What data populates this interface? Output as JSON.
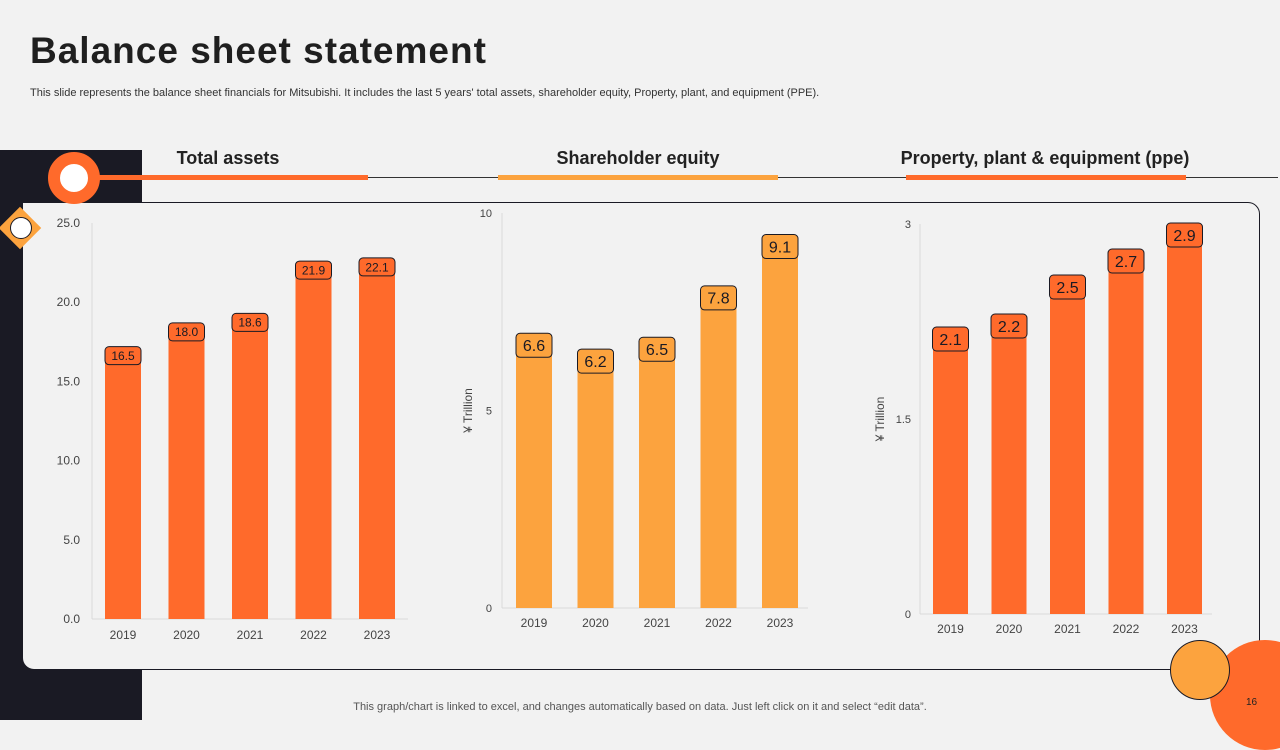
{
  "header": {
    "title": "Balance sheet statement",
    "subtitle": "This slide represents the balance sheet financials for Mitsubishi. It includes the last 5 years' total assets, shareholder equity, Property, plant, and equipment (PPE)."
  },
  "footer": {
    "note": "This graph/chart is linked to excel, and changes automatically based on data. Just left click on it and select “edit data”.",
    "page_number": "16"
  },
  "colors": {
    "orange": "#ff6a2b",
    "light_orange": "#fca33e",
    "dark": "#1a1a24"
  },
  "chart_data": [
    {
      "type": "bar",
      "title": "Total assets",
      "categories": [
        "2019",
        "2020",
        "2021",
        "2022",
        "2023"
      ],
      "values": [
        16.5,
        18.0,
        18.6,
        21.9,
        22.1
      ],
      "value_labels": [
        "16.5",
        "18.0",
        "18.6",
        "21.9",
        "22.1"
      ],
      "ylim": [
        0,
        25
      ],
      "yticks": [
        "0.0",
        "5.0",
        "10.0",
        "15.0",
        "20.0",
        "25.0"
      ],
      "ylabel": "",
      "xlabel": "",
      "color": "#ff6a2b"
    },
    {
      "type": "bar",
      "title": "Shareholder equity",
      "categories": [
        "2019",
        "2020",
        "2021",
        "2022",
        "2023"
      ],
      "values": [
        6.6,
        6.2,
        6.5,
        7.8,
        9.1
      ],
      "value_labels": [
        "6.6",
        "6.2",
        "6.5",
        "7.8",
        "9.1"
      ],
      "ylim": [
        0,
        10
      ],
      "yticks": [
        "0",
        "5",
        "10"
      ],
      "ylabel": "¥ Trillion",
      "xlabel": "",
      "color": "#fca33e"
    },
    {
      "type": "bar",
      "title": "Property, plant & equipment (ppe)",
      "categories": [
        "2019",
        "2020",
        "2021",
        "2022",
        "2023"
      ],
      "values": [
        2.1,
        2.2,
        2.5,
        2.7,
        2.9
      ],
      "value_labels": [
        "2.1",
        "2.2",
        "2.5",
        "2.7",
        "2.9"
      ],
      "ylim": [
        0,
        3
      ],
      "yticks": [
        "0",
        "1.5",
        "3"
      ],
      "ylabel": "¥ Trillion",
      "xlabel": "",
      "color": "#ff6a2b"
    }
  ]
}
